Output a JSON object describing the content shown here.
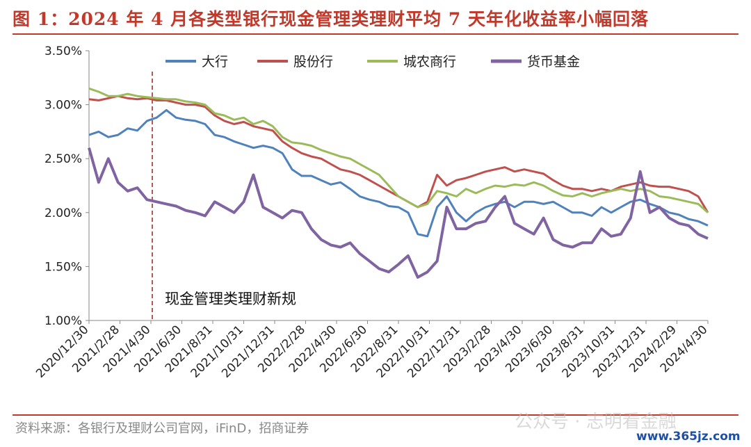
{
  "title": "图 1：2024 年 4 月各类型银行现金管理类理财平均 7 天年化收益率小幅回落",
  "source": "资料来源：各银行及理财公司官网，iFinD，招商证券",
  "watermark": "公众号 · 志明看金融",
  "watermark2": "www.365jz.com",
  "chart_data": {
    "type": "line",
    "title": "",
    "xlabel": "",
    "ylabel": "",
    "ylim": [
      1.0,
      3.5
    ],
    "yticks": [
      "1.00%",
      "1.50%",
      "2.00%",
      "2.50%",
      "3.00%",
      "3.50%"
    ],
    "xticks": [
      "2020/12/30",
      "2021/2/28",
      "2021/4/30",
      "2021/6/30",
      "2021/8/31",
      "2021/10/31",
      "2021/12/31",
      "2022/2/28",
      "2022/4/30",
      "2022/6/30",
      "2022/8/31",
      "2022/10/31",
      "2022/12/31",
      "2023/2/28",
      "2023/4/30",
      "2023/6/30",
      "2023/8/31",
      "2023/10/31",
      "2023/12/31",
      "2024/2/29",
      "2024/4/30"
    ],
    "legend_position": "top",
    "annotation": {
      "label": "现金管理类理财新规",
      "x": "2021/5/1"
    },
    "series": [
      {
        "name": "大行",
        "color": "#4f81bd",
        "values": [
          2.72,
          2.75,
          2.7,
          2.72,
          2.78,
          2.76,
          2.85,
          2.88,
          2.95,
          2.88,
          2.86,
          2.85,
          2.82,
          2.72,
          2.7,
          2.66,
          2.63,
          2.6,
          2.62,
          2.6,
          2.55,
          2.4,
          2.34,
          2.34,
          2.3,
          2.26,
          2.28,
          2.22,
          2.15,
          2.12,
          2.1,
          2.06,
          2.05,
          2.0,
          1.8,
          1.78,
          2.05,
          2.15,
          2.0,
          1.92,
          2.0,
          2.05,
          2.08,
          2.1,
          2.05,
          2.1,
          2.1,
          2.08,
          2.1,
          2.05,
          2.0,
          2.0,
          1.97,
          2.05,
          2.0,
          2.05,
          2.1,
          2.12,
          2.08,
          2.05,
          2.0,
          1.98,
          1.94,
          1.92,
          1.88
        ]
      },
      {
        "name": "股份行",
        "color": "#c0504d",
        "values": [
          3.05,
          3.04,
          3.06,
          3.08,
          3.06,
          3.05,
          3.06,
          3.04,
          3.04,
          3.02,
          3.0,
          3.0,
          2.98,
          2.9,
          2.85,
          2.82,
          2.84,
          2.8,
          2.78,
          2.76,
          2.66,
          2.6,
          2.55,
          2.52,
          2.5,
          2.45,
          2.4,
          2.38,
          2.35,
          2.3,
          2.25,
          2.2,
          2.15,
          2.1,
          2.05,
          2.1,
          2.35,
          2.25,
          2.3,
          2.32,
          2.35,
          2.38,
          2.4,
          2.42,
          2.38,
          2.4,
          2.38,
          2.36,
          2.3,
          2.25,
          2.22,
          2.22,
          2.2,
          2.22,
          2.2,
          2.24,
          2.26,
          2.28,
          2.25,
          2.24,
          2.24,
          2.22,
          2.2,
          2.15,
          2.0
        ]
      },
      {
        "name": "城农商行",
        "color": "#9bbb59",
        "values": [
          3.15,
          3.12,
          3.08,
          3.08,
          3.1,
          3.08,
          3.07,
          3.06,
          3.05,
          3.05,
          3.03,
          3.02,
          3.0,
          2.92,
          2.9,
          2.86,
          2.88,
          2.82,
          2.85,
          2.8,
          2.7,
          2.65,
          2.64,
          2.62,
          2.58,
          2.55,
          2.52,
          2.5,
          2.45,
          2.4,
          2.35,
          2.25,
          2.15,
          2.1,
          2.05,
          2.08,
          2.2,
          2.18,
          2.15,
          2.22,
          2.18,
          2.22,
          2.25,
          2.24,
          2.26,
          2.25,
          2.28,
          2.25,
          2.2,
          2.16,
          2.15,
          2.18,
          2.15,
          2.18,
          2.2,
          2.22,
          2.2,
          2.22,
          2.2,
          2.15,
          2.14,
          2.12,
          2.1,
          2.08,
          2.0
        ]
      },
      {
        "name": "货币基金",
        "color": "#8064a2",
        "values": [
          2.6,
          2.28,
          2.5,
          2.28,
          2.2,
          2.23,
          2.12,
          2.1,
          2.08,
          2.06,
          2.02,
          2.0,
          1.97,
          2.1,
          2.05,
          2.0,
          2.1,
          2.35,
          2.05,
          2.0,
          1.95,
          2.02,
          2.0,
          1.85,
          1.75,
          1.7,
          1.68,
          1.72,
          1.62,
          1.55,
          1.48,
          1.45,
          1.52,
          1.6,
          1.4,
          1.45,
          1.55,
          2.05,
          1.85,
          1.85,
          1.9,
          1.92,
          2.05,
          2.15,
          1.9,
          1.85,
          1.8,
          1.95,
          1.75,
          1.7,
          1.68,
          1.72,
          1.72,
          1.85,
          1.78,
          1.8,
          1.95,
          2.38,
          2.0,
          2.05,
          1.95,
          1.9,
          1.88,
          1.8,
          1.76
        ]
      }
    ]
  }
}
